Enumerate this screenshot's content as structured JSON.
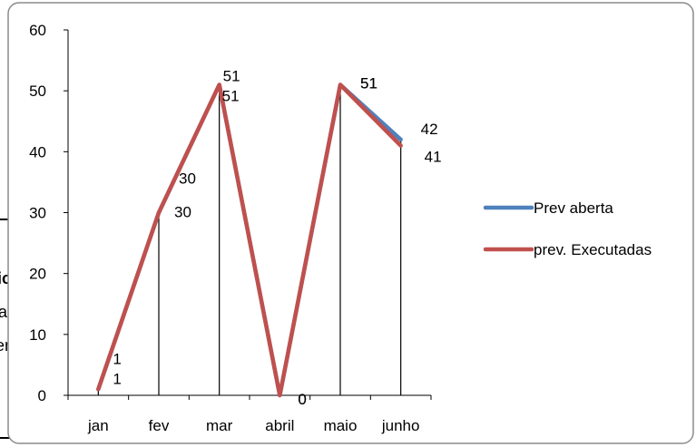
{
  "chart_data": {
    "type": "line",
    "categories": [
      "jan",
      "fev",
      "mar",
      "abril",
      "maio",
      "junho"
    ],
    "ylim": [
      0,
      60
    ],
    "yticks": [
      0,
      10,
      20,
      30,
      40,
      50,
      60
    ],
    "grid": false,
    "drop_lines": true,
    "legend_position": "right",
    "series": [
      {
        "name": "Prev aberta",
        "values": [
          1,
          30,
          51,
          0,
          51,
          42
        ],
        "color": "#4F81BD"
      },
      {
        "name": "prev. Executadas",
        "values": [
          1,
          30,
          51,
          0,
          51,
          41
        ],
        "color": "#C0504D"
      }
    ],
    "data_labels": [
      [
        "1",
        "30",
        "51",
        "0",
        "51",
        "42"
      ],
      [
        "1",
        "30",
        "51",
        "0",
        "51",
        "41"
      ]
    ]
  },
  "background_fragments": [
    "ic",
    "a",
    "er"
  ]
}
